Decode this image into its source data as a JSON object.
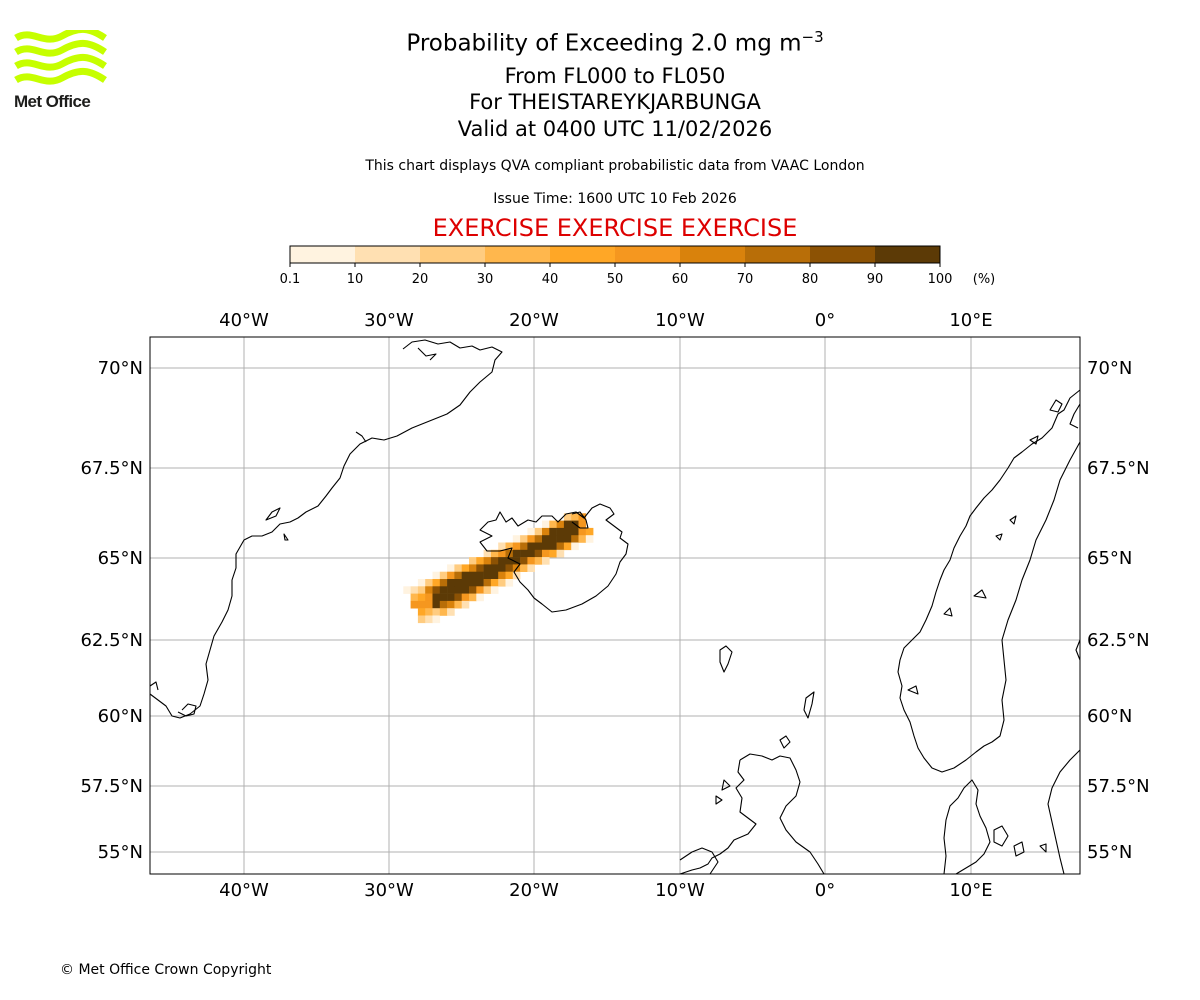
{
  "header": {
    "logo_text": "Met Office",
    "title_prefix": "Probability of Exceeding 2.0 mg m",
    "title_superscript": "−3",
    "level_range": "From FL000 to FL050",
    "volcano": "For THEISTAREYKJARBUNGA",
    "valid_time": "Valid at 0400 UTC 11/02/2026",
    "description": "This chart displays QVA compliant probabilistic data from VAAC London",
    "issue_time": "Issue Time: 1600 UTC 10 Feb 2026",
    "exercise_banner": "EXERCISE EXERCISE EXERCISE"
  },
  "colorbar": {
    "unit": "(%)",
    "ticks": [
      "0.1",
      "10",
      "20",
      "30",
      "40",
      "50",
      "60",
      "70",
      "80",
      "90",
      "100"
    ],
    "colors": [
      "#fff3e0",
      "#ffe0b2",
      "#ffcc80",
      "#ffb74d",
      "#ffa726",
      "#f5971f",
      "#d9820c",
      "#b86e08",
      "#8c5204",
      "#5c3a06"
    ]
  },
  "map": {
    "lon_labels": [
      "40°W",
      "30°W",
      "20°W",
      "10°W",
      "0°",
      "10°E"
    ],
    "lat_labels": [
      "70°N",
      "67.5°N",
      "65°N",
      "62.5°N",
      "60°N",
      "57.5°N",
      "55°N"
    ],
    "plume_color_levels": [
      "#fff3e0",
      "#ffe0b2",
      "#ffcc80",
      "#ffb74d",
      "#ffa726",
      "#f5971f",
      "#d9820c",
      "#b86e08",
      "#8c5204",
      "#5c3a06"
    ]
  },
  "footer": {
    "copyright": "© Met Office Crown Copyright"
  }
}
